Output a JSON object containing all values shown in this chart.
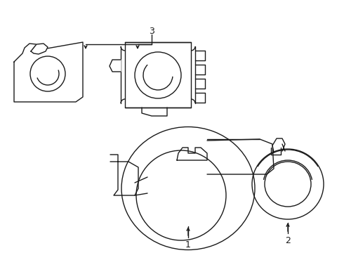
{
  "bg_color": "#ffffff",
  "lc": "#1a1a1a",
  "lw": 1.0,
  "fig_w": 4.9,
  "fig_h": 3.6,
  "dpi": 100
}
